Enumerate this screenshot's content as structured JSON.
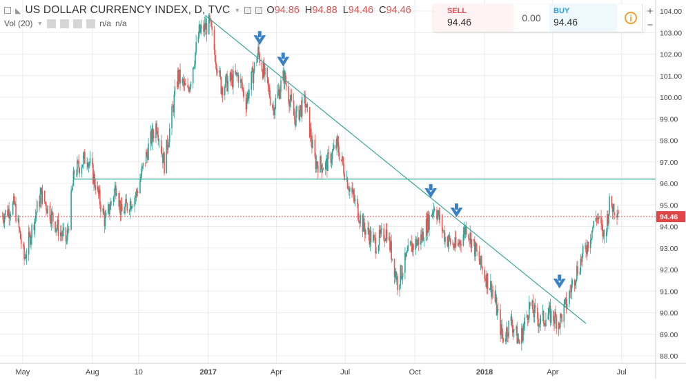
{
  "header": {
    "symbol_title": "US DOLLAR CURRENCY INDEX, D, TVC",
    "ohlc": [
      {
        "key": "O",
        "value": "94.86"
      },
      {
        "key": "H",
        "value": "94.88"
      },
      {
        "key": "L",
        "value": "94.46"
      },
      {
        "key": "C",
        "value": "94.46"
      }
    ]
  },
  "volume": {
    "label": "Vol (20)",
    "value1": "n/a",
    "value2": "n/a"
  },
  "trade_panel": {
    "sell_label": "SELL",
    "sell_price": "94.46",
    "spread": "0.00",
    "buy_label": "BUY",
    "buy_price": "94.46",
    "info_glyph": "i"
  },
  "zoom": {
    "plus": "+",
    "minus": "−"
  },
  "last_price_label": "94.46",
  "colors": {
    "up": "#26a69a",
    "down": "#ef5350",
    "trendline": "#3aa597",
    "last_price": "#e14646",
    "arrow": "#3b82c4",
    "grid": "#ececec"
  },
  "chart_data": {
    "type": "candlestick",
    "title": "US DOLLAR CURRENCY INDEX, D, TVC",
    "ylim": [
      87.2,
      104.3
    ],
    "y_ticks": [
      "104.00",
      "103.00",
      "102.00",
      "101.00",
      "100.00",
      "99.00",
      "98.00",
      "97.00",
      "96.00",
      "95.00",
      "94.00",
      "93.00",
      "92.00",
      "91.00",
      "90.00",
      "89.00",
      "88.00"
    ],
    "x_ticks": [
      "May",
      "Aug",
      "10",
      "2017",
      "Apr",
      "Jul",
      "Oct",
      "2018",
      "Apr",
      "Jul"
    ],
    "x_tick_positions": [
      "2016-05-01",
      "2016-08-01",
      "2016-10-01",
      "2017-01-01",
      "2017-04-01",
      "2017-07-01",
      "2017-10-01",
      "2018-01-01",
      "2018-04-01",
      "2018-07-01"
    ],
    "x_range": [
      "2016-04-01",
      "2018-08-15"
    ],
    "last_close": 94.46,
    "series_path": [
      [
        "2016-04-04",
        94.5
      ],
      [
        "2016-04-20",
        95.0
      ],
      [
        "2016-05-03",
        92.5
      ],
      [
        "2016-05-25",
        95.5
      ],
      [
        "2016-06-15",
        94.0
      ],
      [
        "2016-06-28",
        93.3
      ],
      [
        "2016-07-08",
        96.5
      ],
      [
        "2016-07-25",
        97.3
      ],
      [
        "2016-08-05",
        96.0
      ],
      [
        "2016-08-18",
        94.2
      ],
      [
        "2016-09-02",
        96.0
      ],
      [
        "2016-09-08",
        94.6
      ],
      [
        "2016-09-28",
        95.5
      ],
      [
        "2016-10-15",
        97.8
      ],
      [
        "2016-10-25",
        98.8
      ],
      [
        "2016-11-04",
        96.9
      ],
      [
        "2016-11-22",
        101.0
      ],
      [
        "2016-12-05",
        100.2
      ],
      [
        "2016-12-20",
        103.0
      ],
      [
        "2017-01-03",
        103.4
      ],
      [
        "2017-01-18",
        100.5
      ],
      [
        "2017-02-10",
        101.0
      ],
      [
        "2017-02-20",
        99.8
      ],
      [
        "2017-03-08",
        102.1
      ],
      [
        "2017-03-28",
        99.5
      ],
      [
        "2017-04-11",
        101.0
      ],
      [
        "2017-04-25",
        99.0
      ],
      [
        "2017-05-09",
        99.8
      ],
      [
        "2017-05-22",
        97.0
      ],
      [
        "2017-06-05",
        96.8
      ],
      [
        "2017-06-20",
        97.8
      ],
      [
        "2017-07-05",
        96.0
      ],
      [
        "2017-07-25",
        94.0
      ],
      [
        "2017-08-10",
        93.2
      ],
      [
        "2017-08-25",
        93.8
      ],
      [
        "2017-09-08",
        91.4
      ],
      [
        "2017-09-25",
        93.0
      ],
      [
        "2017-10-10",
        93.5
      ],
      [
        "2017-10-27",
        95.0
      ],
      [
        "2017-11-10",
        93.5
      ],
      [
        "2017-11-25",
        93.0
      ],
      [
        "2017-12-08",
        94.0
      ],
      [
        "2017-12-29",
        92.0
      ],
      [
        "2018-01-12",
        91.0
      ],
      [
        "2018-01-25",
        88.8
      ],
      [
        "2018-02-05",
        89.6
      ],
      [
        "2018-02-16",
        88.6
      ],
      [
        "2018-03-01",
        90.3
      ],
      [
        "2018-03-15",
        89.6
      ],
      [
        "2018-03-28",
        89.9
      ],
      [
        "2018-04-10",
        89.6
      ],
      [
        "2018-04-20",
        90.5
      ],
      [
        "2018-05-01",
        91.8
      ],
      [
        "2018-05-15",
        93.0
      ],
      [
        "2018-05-29",
        94.5
      ],
      [
        "2018-06-08",
        93.5
      ],
      [
        "2018-06-15",
        95.0
      ],
      [
        "2018-06-27",
        94.8
      ]
    ],
    "lines": [
      {
        "kind": "trendline",
        "from": [
          "2016-12-28",
          103.8
        ],
        "to": [
          "2018-05-15",
          89.5
        ]
      },
      {
        "kind": "horizontal",
        "from": [
          "2016-07-08",
          96.2
        ],
        "to": [
          "2018-08-15",
          96.2
        ]
      },
      {
        "kind": "last_price",
        "y": 94.46
      }
    ],
    "arrows": [
      [
        "2017-03-10",
        102.3
      ],
      [
        "2017-04-10",
        101.3
      ],
      [
        "2017-10-22",
        95.2
      ],
      [
        "2017-11-25",
        94.3
      ],
      [
        "2018-04-10",
        91.0
      ]
    ]
  }
}
